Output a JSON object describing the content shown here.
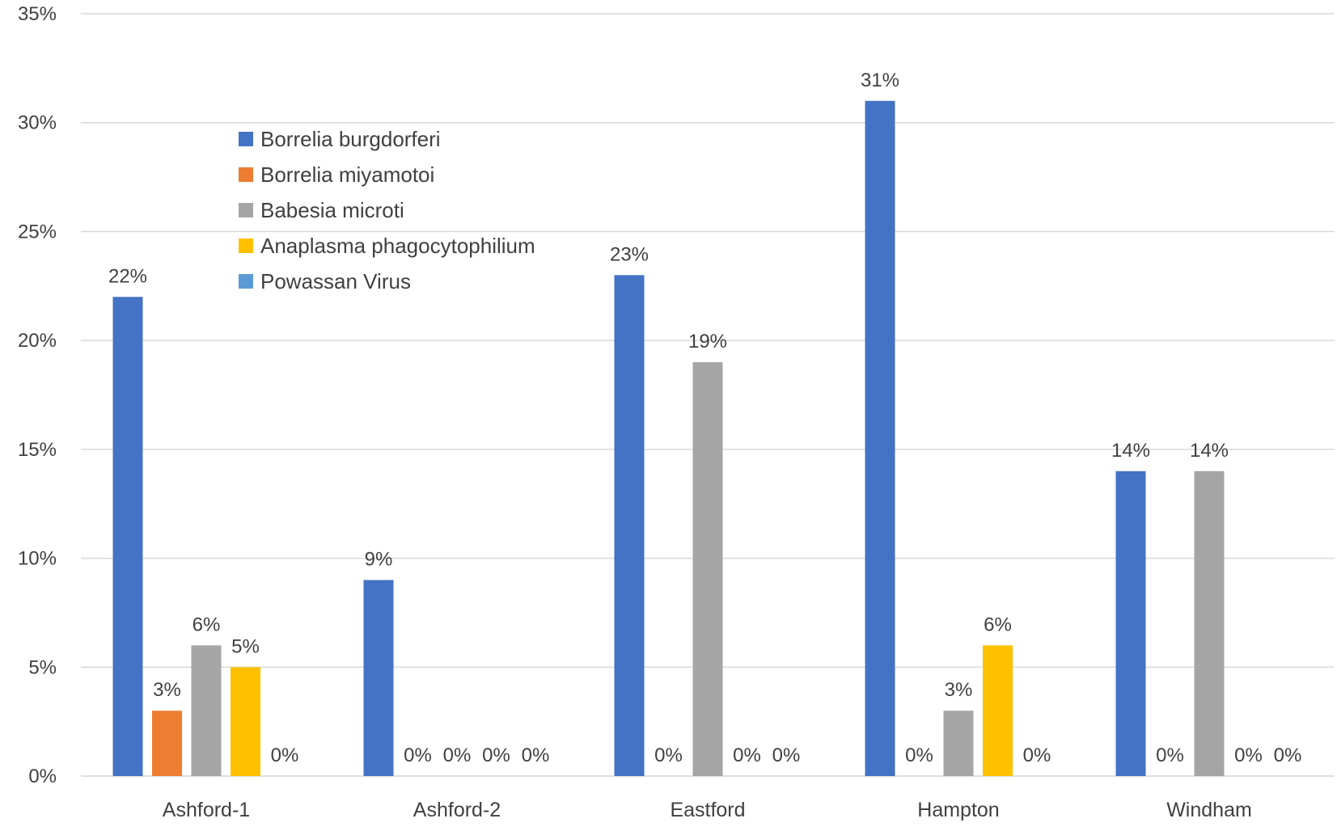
{
  "chart_data": {
    "type": "bar",
    "title": "",
    "xlabel": "",
    "ylabel": "",
    "ylim": [
      0,
      35
    ],
    "y_ticks": [
      0,
      5,
      10,
      15,
      20,
      25,
      30,
      35
    ],
    "y_tick_format": "percent",
    "grid": "horizontal",
    "legend_position": "top-left (inside plot)",
    "categories": [
      "Ashford-1",
      "Ashford-2",
      "Eastford",
      "Hampton",
      "Windham"
    ],
    "series": [
      {
        "name": "Borrelia burgdorferi",
        "color": "#4472C4",
        "values": [
          22,
          9,
          23,
          31,
          14
        ]
      },
      {
        "name": "Borrelia miyamotoi",
        "color": "#ED7D31",
        "values": [
          3,
          0,
          0,
          0,
          0
        ]
      },
      {
        "name": "Babesia microti",
        "color": "#A5A5A5",
        "values": [
          6,
          0,
          19,
          3,
          14
        ]
      },
      {
        "name": "Anaplasma phagocytophilium",
        "color": "#FFC000",
        "values": [
          5,
          0,
          0,
          6,
          0
        ]
      },
      {
        "name": "Powassan Virus",
        "color": "#5B9BD5",
        "values": [
          0,
          0,
          0,
          0,
          0
        ]
      }
    ]
  }
}
